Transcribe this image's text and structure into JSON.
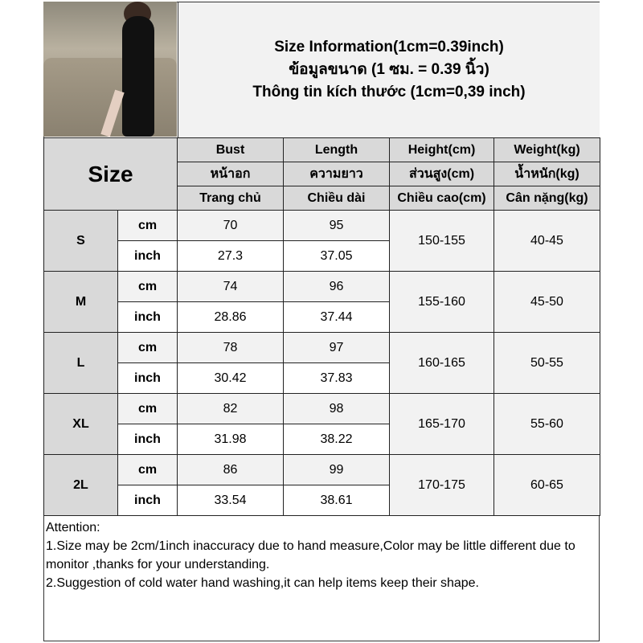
{
  "title_lines": [
    "Size Information(1cm=0.39inch)",
    "ข้อมูลขนาด (1 ซม. = 0.39 นิ้ว)",
    "Thông tin kích thước (1cm=0,39 inch)"
  ],
  "size_header": "Size",
  "columns": [
    [
      "Bust",
      "หน้าอก",
      "Trang chủ"
    ],
    [
      "Length",
      "ความยาว",
      "Chiều dài"
    ],
    [
      "Height(cm)",
      "ส่วนสูง(cm)",
      "Chiều cao(cm)"
    ],
    [
      "Weight(kg)",
      "น้ำหนัก(kg)",
      "Cân nặng(kg)"
    ]
  ],
  "units": {
    "cm": "cm",
    "inch": "inch"
  },
  "rows": [
    {
      "size": "S",
      "bust_cm": "70",
      "length_cm": "95",
      "bust_in": "27.3",
      "length_in": "37.05",
      "height": "150-155",
      "weight": "40-45"
    },
    {
      "size": "M",
      "bust_cm": "74",
      "length_cm": "96",
      "bust_in": "28.86",
      "length_in": "37.44",
      "height": "155-160",
      "weight": "45-50"
    },
    {
      "size": "L",
      "bust_cm": "78",
      "length_cm": "97",
      "bust_in": "30.42",
      "length_in": "37.83",
      "height": "160-165",
      "weight": "50-55"
    },
    {
      "size": "XL",
      "bust_cm": "82",
      "length_cm": "98",
      "bust_in": "31.98",
      "length_in": "38.22",
      "height": "165-170",
      "weight": "55-60"
    },
    {
      "size": "2L",
      "bust_cm": "86",
      "length_cm": "99",
      "bust_in": "33.54",
      "length_in": "38.61",
      "height": "170-175",
      "weight": "60-65"
    }
  ],
  "notes": [
    "Attention:",
    "1.Size may be 2cm/1inch inaccuracy due to hand measure,Color may be little different due to monitor ,thanks for your understanding.",
    "2.Suggestion of cold water hand washing,it can help items keep their shape."
  ]
}
